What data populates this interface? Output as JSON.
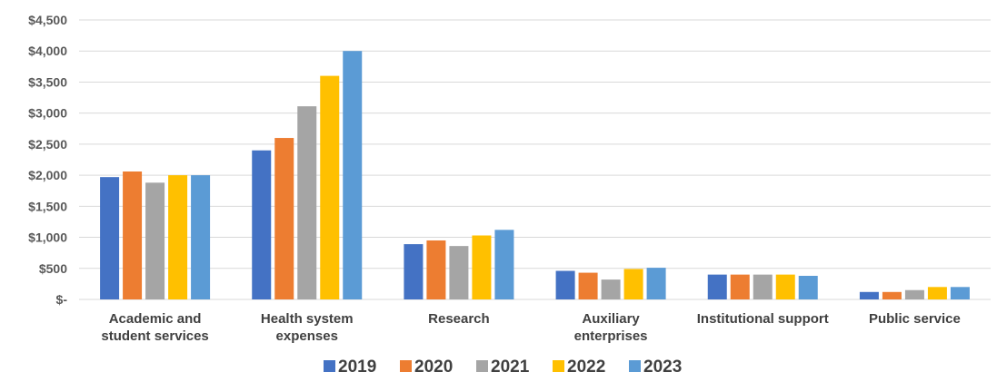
{
  "chart_data": {
    "type": "bar",
    "title": "",
    "xlabel": "",
    "ylabel": "",
    "ylim": [
      0,
      4500
    ],
    "yticks": [
      {
        "value": 0,
        "label": "$-"
      },
      {
        "value": 500,
        "label": "$500"
      },
      {
        "value": 1000,
        "label": "$1,000"
      },
      {
        "value": 1500,
        "label": "$1,500"
      },
      {
        "value": 2000,
        "label": "$2,000"
      },
      {
        "value": 2500,
        "label": "$2,500"
      },
      {
        "value": 3000,
        "label": "$3,000"
      },
      {
        "value": 3500,
        "label": "$3,500"
      },
      {
        "value": 4000,
        "label": "$4,000"
      },
      {
        "value": 4500,
        "label": "$4,500"
      }
    ],
    "grid": true,
    "legend_position": "bottom",
    "categories": [
      [
        "Academic and",
        "student services"
      ],
      [
        "Health system",
        "expenses"
      ],
      [
        "Research"
      ],
      [
        "Auxiliary",
        "enterprises"
      ],
      [
        "Institutional support"
      ],
      [
        "Public service"
      ]
    ],
    "series": [
      {
        "name": "2019",
        "color": "#4472c4",
        "values": [
          1970,
          2400,
          890,
          460,
          400,
          120
        ]
      },
      {
        "name": "2020",
        "color": "#ed7d31",
        "values": [
          2060,
          2600,
          950,
          430,
          400,
          120
        ]
      },
      {
        "name": "2021",
        "color": "#a5a5a5",
        "values": [
          1880,
          3110,
          860,
          320,
          400,
          150
        ]
      },
      {
        "name": "2022",
        "color": "#ffc000",
        "values": [
          2000,
          3600,
          1030,
          490,
          400,
          200
        ]
      },
      {
        "name": "2023",
        "color": "#5b9bd5",
        "values": [
          2000,
          4000,
          1120,
          510,
          380,
          200
        ]
      }
    ]
  }
}
